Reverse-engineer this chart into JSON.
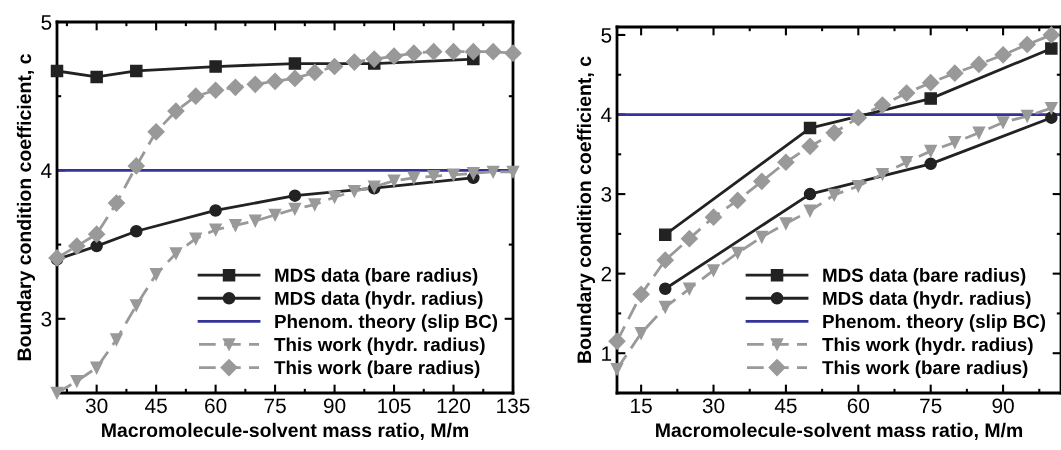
{
  "chart_data": [
    {
      "type": "line",
      "xlabel": "Macromolecule-solvent mass ratio, M/m",
      "ylabel": "Boundary condition coefficient, c",
      "xlim": [
        20,
        135
      ],
      "xticks": [
        30,
        45,
        60,
        75,
        90,
        105,
        120,
        135
      ],
      "ylim": [
        2.5,
        5
      ],
      "yticks": [
        3,
        4,
        5
      ],
      "legend": "bottom right",
      "grid": false,
      "ref_lines": [
        {
          "axis": "y",
          "value": 4,
          "label": "Phenom. theory (slip BC)",
          "color": "#333399",
          "line_style": "solid"
        }
      ],
      "series": [
        {
          "name": "MDS data (bare radius)",
          "color": "#222222",
          "marker": "square",
          "line_style": "solid",
          "x": [
            20,
            30,
            40,
            60,
            80,
            100,
            125
          ],
          "values": [
            4.67,
            4.63,
            4.67,
            4.7,
            4.72,
            4.72,
            4.75
          ]
        },
        {
          "name": "MDS data (hydr. radius)",
          "color": "#222222",
          "marker": "circle",
          "line_style": "solid",
          "x": [
            20,
            30,
            40,
            60,
            80,
            100,
            125
          ],
          "values": [
            3.4,
            3.49,
            3.59,
            3.73,
            3.83,
            3.88,
            3.95
          ]
        },
        {
          "name": "This work (hydr. radius)",
          "color": "#999999",
          "marker": "triangle",
          "line_style": "dashed",
          "x": [
            20,
            25,
            30,
            35,
            40,
            45,
            50,
            55,
            60,
            65,
            70,
            75,
            80,
            85,
            90,
            95,
            100,
            105,
            110,
            115,
            120,
            125,
            130,
            135
          ],
          "values": [
            2.5,
            2.58,
            2.67,
            2.86,
            3.09,
            3.3,
            3.44,
            3.54,
            3.6,
            3.63,
            3.66,
            3.7,
            3.74,
            3.77,
            3.82,
            3.86,
            3.89,
            3.93,
            3.95,
            3.96,
            3.97,
            3.98,
            3.99,
            3.99
          ]
        },
        {
          "name": "This work (bare radius)",
          "color": "#999999",
          "marker": "diamond",
          "line_style": "dashed",
          "x": [
            20,
            25,
            30,
            35,
            40,
            45,
            50,
            55,
            60,
            65,
            70,
            75,
            80,
            85,
            90,
            95,
            100,
            105,
            110,
            115,
            120,
            125,
            130,
            135
          ],
          "values": [
            3.41,
            3.49,
            3.57,
            3.78,
            4.03,
            4.26,
            4.4,
            4.5,
            4.54,
            4.56,
            4.58,
            4.6,
            4.62,
            4.66,
            4.7,
            4.73,
            4.75,
            4.77,
            4.79,
            4.8,
            4.8,
            4.8,
            4.8,
            4.79
          ]
        }
      ]
    },
    {
      "type": "line",
      "xlabel": "Macromolecule-solvent mass ratio, M/m",
      "ylabel": "Boundary condition coefficient, c",
      "xlim": [
        10,
        102
      ],
      "xticks": [
        15,
        30,
        45,
        60,
        75,
        90
      ],
      "ylim": [
        0.5,
        5.1
      ],
      "yticks": [
        1,
        2,
        3,
        4,
        5
      ],
      "legend": "bottom right",
      "grid": false,
      "ref_lines": [
        {
          "axis": "y",
          "value": 4,
          "label": "Phenom. theory (slip BC)",
          "color": "#333399",
          "line_style": "solid"
        }
      ],
      "series": [
        {
          "name": "MDS data (bare radius)",
          "color": "#222222",
          "marker": "square",
          "line_style": "solid",
          "x": [
            20,
            50,
            75,
            100
          ],
          "values": [
            2.49,
            3.83,
            4.2,
            4.83
          ]
        },
        {
          "name": "MDS data (hydr. radius)",
          "color": "#222222",
          "marker": "circle",
          "line_style": "solid",
          "x": [
            20,
            50,
            75,
            100
          ],
          "values": [
            1.81,
            3.0,
            3.38,
            3.96
          ]
        },
        {
          "name": "This work (hydr. radius)",
          "color": "#999999",
          "marker": "triangle",
          "line_style": "dashed",
          "x": [
            10,
            15,
            20,
            25,
            30,
            35,
            40,
            45,
            50,
            55,
            60,
            65,
            70,
            75,
            80,
            85,
            90,
            95,
            100
          ],
          "values": [
            0.8,
            1.25,
            1.58,
            1.81,
            2.04,
            2.26,
            2.46,
            2.63,
            2.79,
            2.99,
            3.1,
            3.25,
            3.4,
            3.54,
            3.65,
            3.77,
            3.9,
            3.98,
            4.08
          ]
        },
        {
          "name": "This work (bare radius)",
          "color": "#999999",
          "marker": "diamond",
          "line_style": "dashed",
          "x": [
            10,
            15,
            20,
            25,
            30,
            35,
            40,
            45,
            50,
            55,
            60,
            65,
            70,
            75,
            80,
            85,
            90,
            95,
            100
          ],
          "values": [
            1.15,
            1.74,
            2.17,
            2.44,
            2.71,
            2.92,
            3.16,
            3.4,
            3.6,
            3.77,
            3.96,
            4.12,
            4.27,
            4.4,
            4.52,
            4.63,
            4.75,
            4.88,
            5.0
          ]
        }
      ]
    }
  ]
}
